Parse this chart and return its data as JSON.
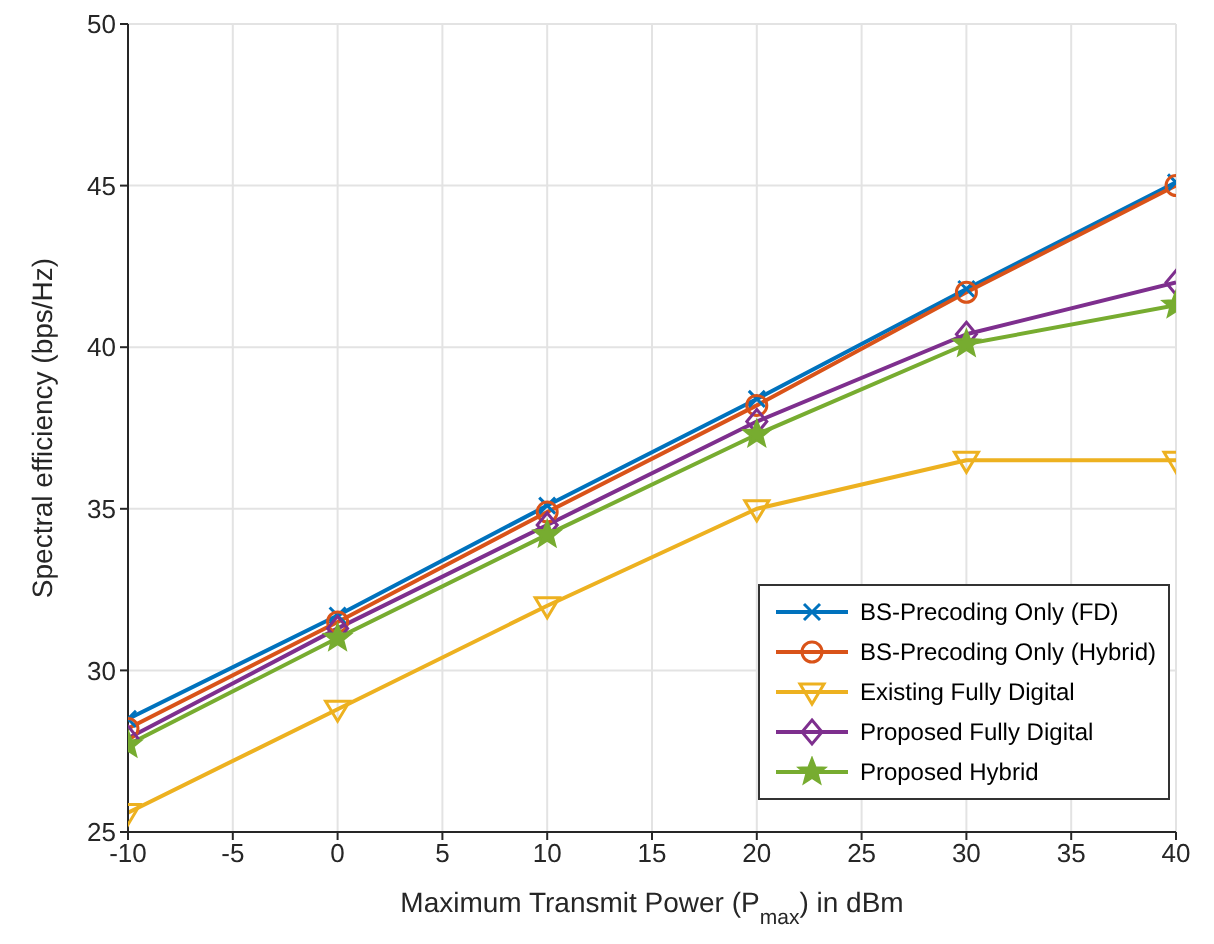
{
  "chart_data": {
    "type": "line",
    "xlabel": "Maximum Transmit Power (P$_{max}$) in dBm",
    "ylabel": "Spectral efficiency (bps/Hz)",
    "x": [
      -10,
      0,
      10,
      20,
      30,
      40
    ],
    "series": [
      {
        "name": "BS-Precoding Only (FD)",
        "color": "#0072bd",
        "marker": "cross",
        "values": [
          28.5,
          31.7,
          35.1,
          38.4,
          41.8,
          45.1
        ]
      },
      {
        "name": "BS-Precoding Only (Hybrid)",
        "color": "#d95319",
        "marker": "circle",
        "values": [
          28.2,
          31.5,
          34.9,
          38.2,
          41.7,
          45.0
        ]
      },
      {
        "name": "Existing Fully Digital",
        "color": "#edb120",
        "marker": "triangle",
        "values": [
          25.6,
          28.8,
          32.0,
          35.0,
          36.5,
          36.5
        ]
      },
      {
        "name": "Proposed Fully Digital",
        "color": "#7e2f8e",
        "marker": "diamond",
        "values": [
          27.9,
          31.3,
          34.5,
          37.7,
          40.4,
          42.0
        ]
      },
      {
        "name": "Proposed Hybrid",
        "color": "#77ac30",
        "marker": "star",
        "values": [
          27.7,
          31.0,
          34.2,
          37.3,
          40.1,
          41.3
        ]
      }
    ],
    "xlim": [
      -10,
      40
    ],
    "xticks": [
      -10,
      -5,
      0,
      5,
      10,
      15,
      20,
      25,
      30,
      35,
      40
    ],
    "ylim": [
      25,
      50
    ],
    "yticks": [
      25,
      30,
      35,
      40,
      45,
      50
    ],
    "grid": true,
    "legend": "bottom right"
  }
}
